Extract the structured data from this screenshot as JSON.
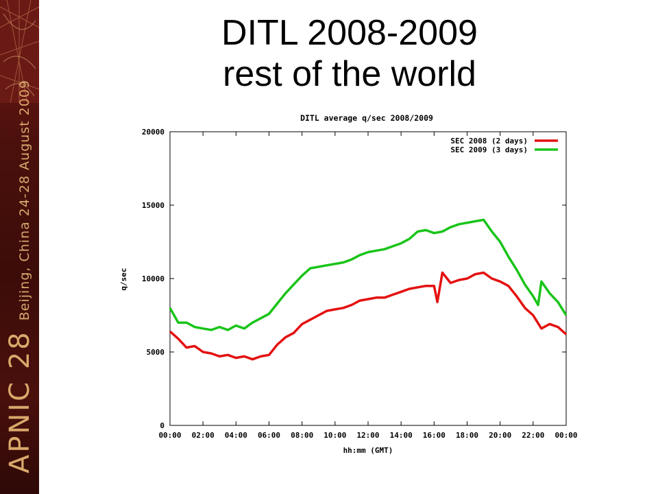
{
  "slide": {
    "title_line1": "DITL 2008-2009",
    "title_line2": "rest of the world"
  },
  "sidebar": {
    "brand": "APNIC 28",
    "event": "Beijing, China  24-28 August 2009",
    "colors": {
      "background": "#4a100c",
      "text": "#d9a86b"
    }
  },
  "chart_data": {
    "type": "line",
    "title": "DITL average q/sec 2008/2009",
    "xlabel": "hh:mm (GMT)",
    "ylabel": "q/sec",
    "xlim": [
      0,
      24
    ],
    "ylim": [
      0,
      20000
    ],
    "x_ticks": [
      "00:00",
      "02:00",
      "04:00",
      "06:00",
      "08:00",
      "10:00",
      "12:00",
      "14:00",
      "16:00",
      "18:00",
      "20:00",
      "22:00",
      "00:00"
    ],
    "y_ticks": [
      "0",
      "5000",
      "10000",
      "15000",
      "20000"
    ],
    "grid": false,
    "legend_position": "top-right",
    "series": [
      {
        "name": "SEC 2008 (2 days)",
        "color": "#e41010",
        "x": [
          0,
          0.5,
          1,
          1.5,
          2,
          2.5,
          3,
          3.5,
          4,
          4.5,
          5,
          5.5,
          6,
          6.5,
          7,
          7.5,
          8,
          8.5,
          9,
          9.5,
          10,
          10.5,
          11,
          11.5,
          12,
          12.5,
          13,
          13.5,
          14,
          14.5,
          15,
          15.5,
          16,
          16.2,
          16.5,
          17,
          17.5,
          18,
          18.5,
          19,
          19.5,
          20,
          20.5,
          21,
          21.5,
          22,
          22.5,
          23,
          23.5,
          24
        ],
        "y": [
          6400,
          5900,
          5300,
          5400,
          5000,
          4900,
          4700,
          4800,
          4600,
          4700,
          4500,
          4700,
          4800,
          5500,
          6000,
          6300,
          6900,
          7200,
          7500,
          7800,
          7900,
          8000,
          8200,
          8500,
          8600,
          8700,
          8700,
          8900,
          9100,
          9300,
          9400,
          9500,
          9500,
          8400,
          10400,
          9700,
          9900,
          10000,
          10300,
          10400,
          10000,
          9800,
          9500,
          8800,
          8000,
          7500,
          6600,
          6900,
          6700,
          6200
        ]
      },
      {
        "name": "SEC 2009 (3 days)",
        "color": "#19c419",
        "x": [
          0,
          0.5,
          1,
          1.5,
          2,
          2.5,
          3,
          3.5,
          4,
          4.5,
          5,
          5.5,
          6,
          6.5,
          7,
          7.5,
          8,
          8.5,
          9,
          9.5,
          10,
          10.5,
          11,
          11.5,
          12,
          12.5,
          13,
          13.5,
          14,
          14.5,
          15,
          15.5,
          16,
          16.5,
          17,
          17.5,
          18,
          18.5,
          19,
          19.5,
          20,
          20.5,
          21,
          21.5,
          22,
          22.3,
          22.5,
          23,
          23.5,
          24
        ],
        "y": [
          8000,
          7000,
          7000,
          6700,
          6600,
          6500,
          6700,
          6500,
          6800,
          6600,
          7000,
          7300,
          7600,
          8300,
          9000,
          9600,
          10200,
          10700,
          10800,
          10900,
          11000,
          11100,
          11300,
          11600,
          11800,
          11900,
          12000,
          12200,
          12400,
          12700,
          13200,
          13300,
          13100,
          13200,
          13500,
          13700,
          13800,
          13900,
          14000,
          13200,
          12500,
          11500,
          10600,
          9600,
          8800,
          8200,
          9800,
          9000,
          8400,
          7500
        ]
      }
    ]
  }
}
